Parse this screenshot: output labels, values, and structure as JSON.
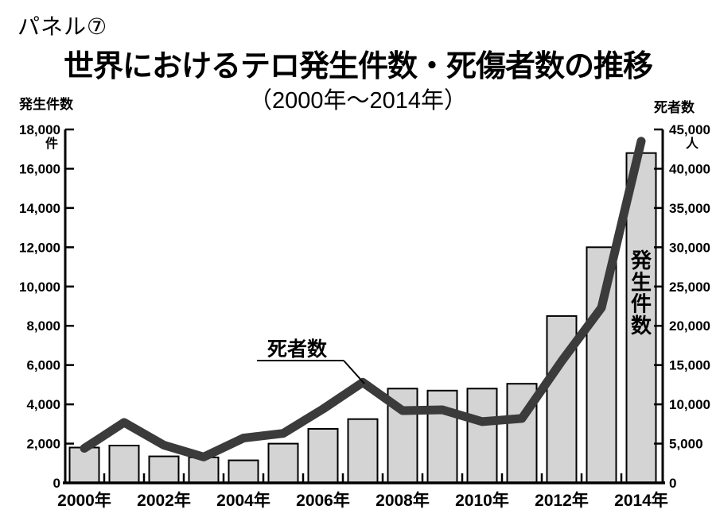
{
  "header": {
    "panel_label": "パネル⑦",
    "title": "世界におけるテロ発生件数・死傷者数の推移",
    "subtitle": "（2000年〜2014年）"
  },
  "chart_data": {
    "type": "bar",
    "subtype": "bar-line-combo",
    "categories": [
      2000,
      2001,
      2002,
      2003,
      2004,
      2005,
      2006,
      2007,
      2008,
      2009,
      2010,
      2011,
      2012,
      2013,
      2014
    ],
    "x_tick_labels": [
      "2000年",
      "2002年",
      "2004年",
      "2006年",
      "2008年",
      "2010年",
      "2012年",
      "2014年"
    ],
    "series": [
      {
        "name": "発生件数",
        "type": "bar",
        "axis": "left",
        "values": [
          1800,
          1900,
          1350,
          1300,
          1150,
          2000,
          2750,
          3250,
          4800,
          4700,
          4800,
          5050,
          8500,
          12000,
          16800
        ]
      },
      {
        "name": "死者数",
        "type": "line",
        "axis": "right",
        "values": [
          4400,
          7700,
          4800,
          3300,
          5700,
          6300,
          9400,
          12800,
          9200,
          9300,
          7800,
          8200,
          15500,
          22300,
          43500
        ]
      }
    ],
    "left_axis": {
      "label": "発生件数",
      "unit": "件",
      "min": 0,
      "max": 18000,
      "step": 2000
    },
    "right_axis": {
      "label": "死者数",
      "unit": "人",
      "min": 0,
      "max": 45000,
      "step": 5000
    },
    "annotations": {
      "line_label": "死者数",
      "bar_label": "発生件数"
    },
    "grid": "off",
    "legend": "inline-annotations",
    "colors": {
      "bar_fill": "#d4d4d4",
      "bar_border": "#000000",
      "line": "#3b3b3b",
      "axis": "#000000",
      "text": "#000000",
      "background": "#ffffff"
    }
  }
}
